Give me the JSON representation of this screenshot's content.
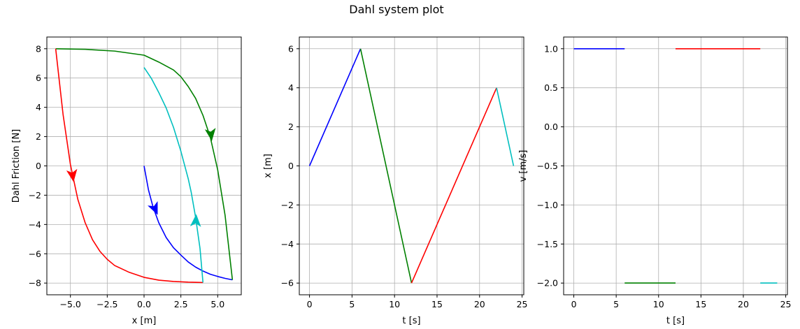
{
  "figure": {
    "title": "Dahl system plot"
  },
  "colors": {
    "blue": "#0000ff",
    "green": "#008000",
    "red": "#ff0000",
    "cyan": "#00bfbf",
    "grid": "#b0b0b0"
  },
  "chart_data": [
    {
      "type": "line",
      "xlabel": "x [m]",
      "ylabel": "Dahl Friction [N]",
      "xlim": [
        -6.6,
        6.6
      ],
      "ylim": [
        -8.8,
        8.8
      ],
      "xticks": [
        -5.0,
        -2.5,
        0.0,
        2.5,
        5.0
      ],
      "xtick_labels": [
        "−5.0",
        "−2.5",
        "0.0",
        "2.5",
        "5.0"
      ],
      "yticks": [
        -8,
        -6,
        -4,
        -2,
        0,
        2,
        4,
        6,
        8
      ],
      "ytick_labels": [
        "−8",
        "−6",
        "−4",
        "−2",
        "0",
        "2",
        "4",
        "6",
        "8"
      ],
      "grid": true,
      "series": [
        {
          "color": "blue",
          "x": [
            0,
            0.3,
            0.6,
            1.0,
            1.5,
            2.0,
            2.5,
            3.0,
            3.5,
            4.0,
            4.5,
            5.0,
            5.5,
            6.0
          ],
          "y": [
            0,
            -1.64,
            -2.77,
            -3.88,
            -4.89,
            -5.59,
            -6.09,
            -6.56,
            -6.91,
            -7.18,
            -7.4,
            -7.55,
            -7.68,
            -7.78
          ]
        },
        {
          "color": "green",
          "x": [
            6.0,
            5.5,
            5.0,
            4.5,
            4.0,
            3.5,
            3.0,
            2.5,
            2.0,
            1.0,
            0,
            -2,
            -4,
            -6.0
          ],
          "y": [
            -7.78,
            -3.36,
            -0.27,
            1.95,
            3.45,
            4.61,
            5.42,
            6.09,
            6.55,
            7.09,
            7.56,
            7.84,
            7.96,
            8.0
          ]
        },
        {
          "color": "red",
          "x": [
            -6.0,
            -5.5,
            -5.0,
            -4.5,
            -4.0,
            -3.5,
            -3.0,
            -2.5,
            -2.0,
            -1.0,
            0,
            1,
            2,
            3,
            4.0
          ],
          "y": [
            8.0,
            3.52,
            0.09,
            -2.27,
            -3.88,
            -5.04,
            -5.83,
            -6.38,
            -6.8,
            -7.27,
            -7.61,
            -7.8,
            -7.89,
            -7.94,
            -7.96
          ]
        },
        {
          "color": "cyan",
          "x": [
            4.0,
            3.8,
            3.5,
            3.2,
            3.0,
            2.5,
            2.0,
            1.5,
            1.0,
            0.5,
            0
          ],
          "y": [
            -7.96,
            -5.64,
            -3.51,
            -1.79,
            -0.88,
            1.0,
            2.63,
            3.96,
            5.01,
            5.97,
            6.72
          ]
        }
      ],
      "arrows": [
        {
          "color": "red",
          "x": -4.9,
          "y": -0.3,
          "dx": 0.1,
          "dy": -0.7
        },
        {
          "color": "blue",
          "x": 0.6,
          "y": -2.6,
          "dx": 0.35,
          "dy": -0.8
        },
        {
          "color": "green",
          "x": 4.5,
          "y": 2.5,
          "dx": 0.1,
          "dy": -0.8
        },
        {
          "color": "cyan",
          "x": 3.5,
          "y": -4.1,
          "dx": 0.05,
          "dy": 0.9
        }
      ]
    },
    {
      "type": "line",
      "xlabel": "t [s]",
      "ylabel": "x [m]",
      "xlim": [
        -1.2,
        25.2
      ],
      "ylim": [
        -6.6,
        6.6
      ],
      "xticks": [
        0,
        5,
        10,
        15,
        20,
        25
      ],
      "xtick_labels": [
        "0",
        "5",
        "10",
        "15",
        "20",
        "25"
      ],
      "yticks": [
        -6,
        -4,
        -2,
        0,
        2,
        4,
        6
      ],
      "ytick_labels": [
        "−6",
        "−4",
        "−2",
        "0",
        "2",
        "4",
        "6"
      ],
      "grid": true,
      "series": [
        {
          "color": "blue",
          "x": [
            0,
            6
          ],
          "y": [
            0,
            6
          ]
        },
        {
          "color": "green",
          "x": [
            6,
            12
          ],
          "y": [
            6,
            -6
          ]
        },
        {
          "color": "red",
          "x": [
            12,
            22
          ],
          "y": [
            -6,
            4
          ]
        },
        {
          "color": "cyan",
          "x": [
            22,
            24
          ],
          "y": [
            4,
            0
          ]
        }
      ]
    },
    {
      "type": "line",
      "xlabel": "t [s]",
      "ylabel": "v [m/s]",
      "xlim": [
        -1.2,
        25.2
      ],
      "ylim": [
        -2.15,
        1.15
      ],
      "xticks": [
        0,
        5,
        10,
        15,
        20,
        25
      ],
      "xtick_labels": [
        "0",
        "5",
        "10",
        "15",
        "20",
        "25"
      ],
      "yticks": [
        -2.0,
        -1.5,
        -1.0,
        -0.5,
        0.0,
        0.5,
        1.0
      ],
      "ytick_labels": [
        "−2.0",
        "−1.5",
        "−1.0",
        "−0.5",
        "0.0",
        "0.5",
        "1.0"
      ],
      "grid": true,
      "series": [
        {
          "color": "blue",
          "x": [
            0,
            6
          ],
          "y": [
            1,
            1
          ]
        },
        {
          "color": "green",
          "x": [
            6,
            12
          ],
          "y": [
            -2,
            -2
          ]
        },
        {
          "color": "red",
          "x": [
            12,
            22
          ],
          "y": [
            1,
            1
          ]
        },
        {
          "color": "cyan",
          "x": [
            22,
            24
          ],
          "y": [
            -2,
            -2
          ]
        }
      ]
    }
  ]
}
